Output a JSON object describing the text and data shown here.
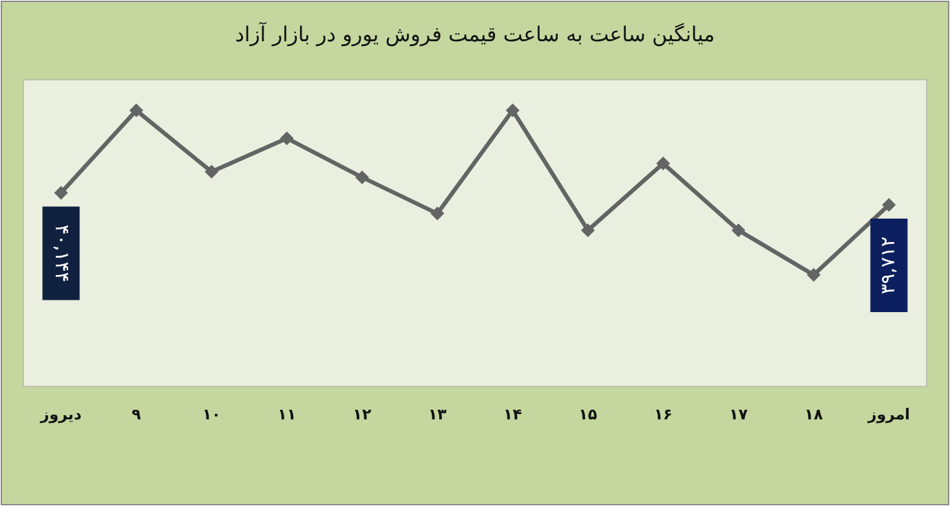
{
  "chart_data": {
    "type": "line",
    "title": "میانگین ساعت به ساعت قیمت فروش یورو در بازار آزاد",
    "categories": [
      "دیروز",
      "۹",
      "۱۰",
      "۱۱",
      "۱۲",
      "۱۳",
      "۱۴",
      "۱۵",
      "۱۶",
      "۱۷",
      "۱۸",
      "امروز"
    ],
    "series": [
      {
        "color": "#646464",
        "values": [
          40144,
          43100,
          40900,
          42100,
          40700,
          39400,
          43100,
          38800,
          41200,
          38800,
          37200,
          39712
        ],
        "value_labels": [
          "۴۰,۱۴۴",
          null,
          null,
          null,
          null,
          null,
          null,
          null,
          null,
          null,
          null,
          "۳۹,۷۱۲"
        ]
      }
    ],
    "ylim": [
      33200,
      44200
    ],
    "tick_labels": "x",
    "marker": "diamond"
  }
}
